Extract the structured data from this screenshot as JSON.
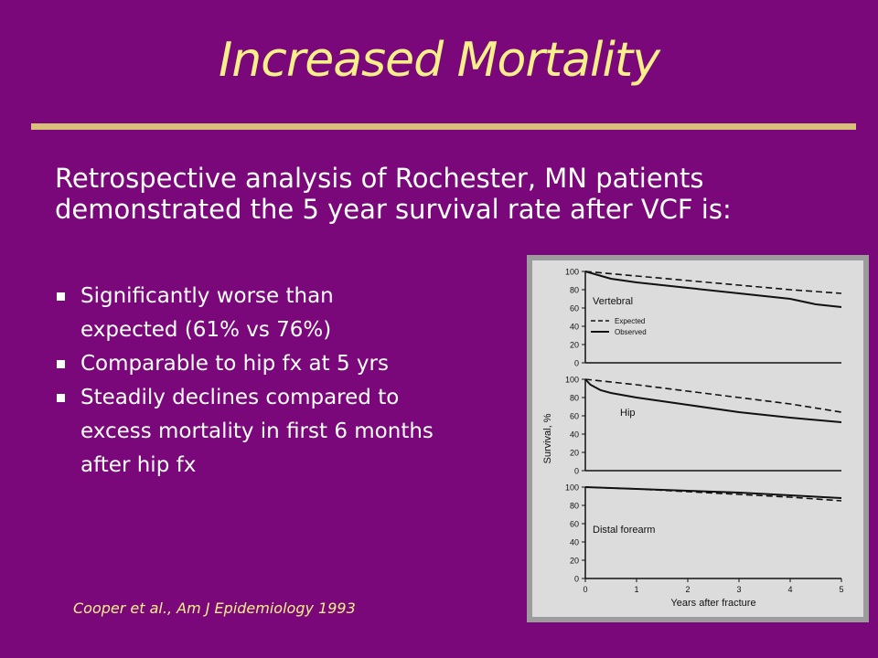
{
  "slide": {
    "title": "Increased Mortality",
    "intro_lines": [
      "Retrospective analysis of Rochester, MN patients",
      "demonstrated the 5 year survival rate after VCF is:"
    ],
    "bullets": [
      "Significantly worse than",
      "expected (61% vs 76%)",
      "Comparable to hip fx at 5 yrs",
      "Steadily declines compared to",
      "excess mortality in first 6 months",
      "after hip fx"
    ],
    "citation": "Cooper et al., Am J Epidemiology 1993",
    "colors": {
      "background": "#7a087a",
      "title": "#f7f08a",
      "rule": "#d8c07a",
      "text": "#ffffff"
    }
  },
  "chart_data": {
    "type": "line",
    "xlabel": "Years after fracture",
    "ylabel": "Survival, %",
    "xlim": [
      0,
      5
    ],
    "ylim": [
      0,
      100
    ],
    "x_ticks": [
      "0",
      "1",
      "2",
      "3",
      "4",
      "5"
    ],
    "y_ticks": [
      "0",
      "20",
      "40",
      "60",
      "80",
      "100"
    ],
    "legend": {
      "placement": "inside-top-left-of-first-panel",
      "entries": [
        "Expected",
        "Observed"
      ]
    },
    "panels": [
      {
        "name": "Vertebral",
        "series": [
          {
            "name": "Expected",
            "style": "dashed",
            "x": [
              0,
              1,
              2,
              3,
              4,
              5
            ],
            "y": [
              100,
              95,
              90,
              85,
              80,
              76
            ]
          },
          {
            "name": "Observed",
            "style": "solid",
            "x": [
              0,
              0.5,
              1,
              2,
              3,
              4,
              4.5,
              5
            ],
            "y": [
              100,
              92,
              88,
              82,
              76,
              70,
              64,
              61
            ]
          }
        ]
      },
      {
        "name": "Hip",
        "series": [
          {
            "name": "Expected",
            "style": "dashed",
            "x": [
              0,
              1,
              2,
              3,
              4,
              5
            ],
            "y": [
              100,
              94,
              87,
              80,
              73,
              64
            ]
          },
          {
            "name": "Observed",
            "style": "solid",
            "x": [
              0,
              0.1,
              0.3,
              0.5,
              1,
              2,
              3,
              4,
              5
            ],
            "y": [
              100,
              94,
              88,
              85,
              80,
              72,
              64,
              58,
              53
            ]
          }
        ]
      },
      {
        "name": "Distal forearm",
        "series": [
          {
            "name": "Expected",
            "style": "dashed",
            "x": [
              0,
              1,
              2,
              3,
              4,
              5
            ],
            "y": [
              100,
              98,
              95,
              92,
              89,
              85
            ]
          },
          {
            "name": "Observed",
            "style": "solid",
            "x": [
              0,
              1,
              2,
              3,
              4,
              5
            ],
            "y": [
              100,
              98,
              96,
              94,
              91,
              88
            ]
          }
        ]
      }
    ]
  }
}
